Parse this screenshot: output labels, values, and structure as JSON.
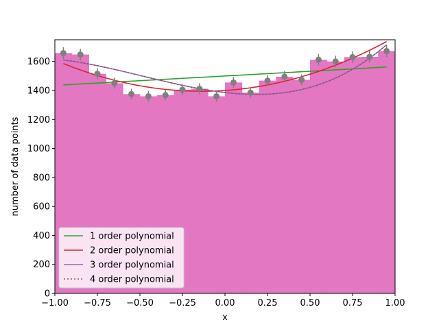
{
  "chart_data": {
    "type": "bar",
    "xlabel": "x",
    "ylabel": "number of data points",
    "xlim": [
      -1.0,
      1.0
    ],
    "ylim": [
      0,
      1750
    ],
    "xticks": [
      "−1.00",
      "−0.75",
      "−0.50",
      "−0.25",
      "0.00",
      "0.25",
      "0.50",
      "0.75",
      "1.00"
    ],
    "xtick_values": [
      -1.0,
      -0.75,
      -0.5,
      -0.25,
      0.0,
      0.25,
      0.5,
      0.75,
      1.0
    ],
    "yticks": [
      "0",
      "200",
      "400",
      "600",
      "800",
      "1000",
      "1200",
      "1400",
      "1600"
    ],
    "ytick_values": [
      0,
      200,
      400,
      600,
      800,
      1000,
      1200,
      1400,
      1600
    ],
    "grid": false,
    "legend_position": "lower-left",
    "histogram": {
      "color": "#e377c2",
      "bin_edges": [
        -1.0,
        -0.9,
        -0.8,
        -0.7,
        -0.6,
        -0.5,
        -0.4,
        -0.3,
        -0.2,
        -0.1,
        0.0,
        0.1,
        0.2,
        0.3,
        0.4,
        0.5,
        0.6,
        0.7,
        0.8,
        0.9,
        1.0
      ],
      "counts": [
        1658,
        1648,
        1515,
        1450,
        1375,
        1360,
        1368,
        1405,
        1412,
        1360,
        1455,
        1385,
        1468,
        1495,
        1473,
        1612,
        1600,
        1630,
        1632,
        1672
      ]
    },
    "points": {
      "color": "#7f7f7f",
      "x": [
        -0.95,
        -0.85,
        -0.75,
        -0.65,
        -0.55,
        -0.45,
        -0.35,
        -0.25,
        -0.15,
        -0.05,
        0.05,
        0.15,
        0.25,
        0.35,
        0.45,
        0.55,
        0.65,
        0.75,
        0.85,
        0.95
      ],
      "y": [
        1658,
        1648,
        1515,
        1450,
        1375,
        1360,
        1368,
        1405,
        1412,
        1360,
        1455,
        1385,
        1468,
        1495,
        1473,
        1612,
        1600,
        1630,
        1632,
        1672
      ],
      "yerr": [
        40,
        40,
        39,
        38,
        37,
        37,
        37,
        37,
        38,
        37,
        38,
        37,
        38,
        39,
        38,
        40,
        40,
        40,
        40,
        41
      ]
    },
    "series": [
      {
        "name": "1 order polynomial",
        "color": "#2ca02c",
        "style": "solid",
        "coeffs": [
          1500,
          65,
          0,
          0,
          0
        ]
      },
      {
        "name": "2 order polynomial",
        "color": "#d62728",
        "style": "solid",
        "coeffs": [
          1400,
          80,
          290,
          0,
          0
        ]
      },
      {
        "name": "3 order polynomial",
        "color": "#9467bd",
        "style": "solid",
        "coeffs": [
          1386,
          -135,
          307,
          211,
          0
        ]
      },
      {
        "name": "4 order polynomial",
        "color": "#8c564b",
        "style": "dotted",
        "coeffs": [
          1386,
          -135,
          307,
          211,
          0
        ]
      }
    ]
  }
}
